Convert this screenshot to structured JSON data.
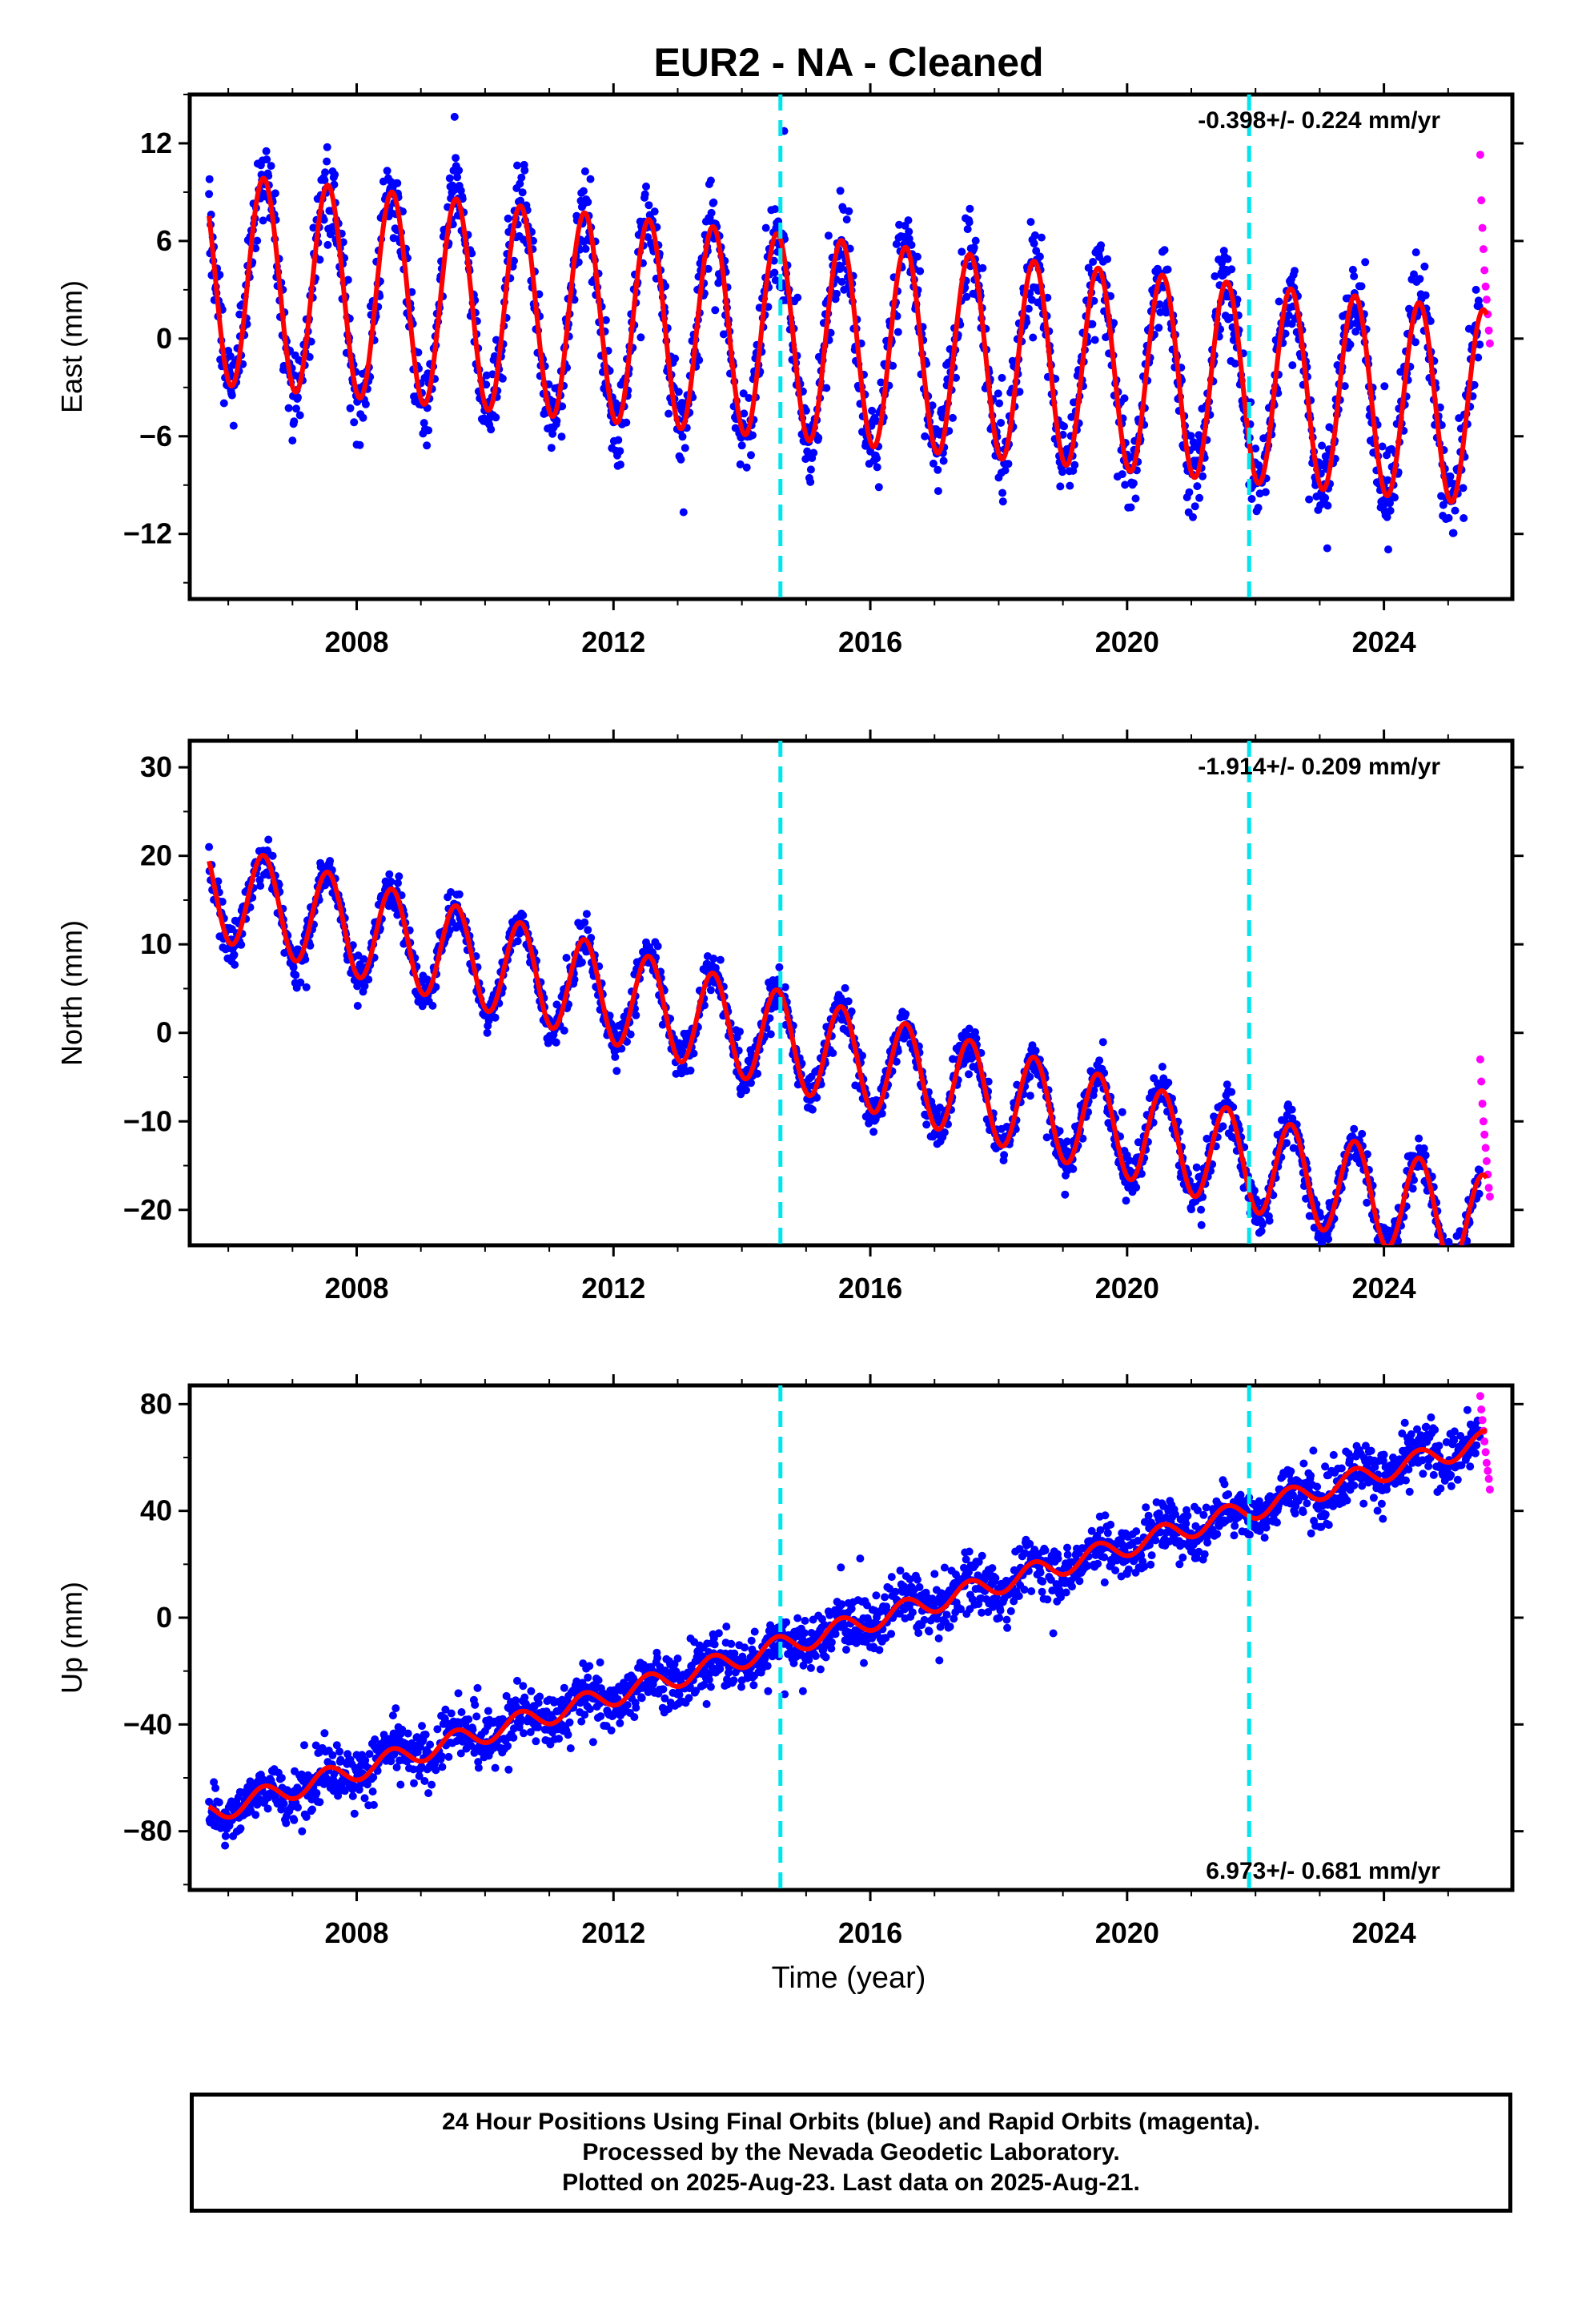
{
  "title": "EUR2  - NA - Cleaned",
  "colors": {
    "final": "#0000ff",
    "rapid": "#ff00ff",
    "model": "#ff0000",
    "break": "#00e5ee"
  },
  "chart_data": [
    {
      "type": "scatter",
      "ylabel": "East (mm)",
      "xlabel": "",
      "xlim": [
        2005.4,
        2026.0
      ],
      "ylim": [
        -16,
        15
      ],
      "xticks": [
        "2008",
        "2012",
        "2016",
        "2020",
        "2024"
      ],
      "yticks": [
        "12",
        "6",
        "0",
        "−6",
        "−12"
      ],
      "ytick_values": [
        12,
        6,
        0,
        -6,
        -12
      ],
      "rate_label": "-0.398+/- 0.224 mm/yr",
      "rate_label_position": "top-right",
      "breaks": [
        2014.6,
        2021.9
      ],
      "series": [
        {
          "kind": "model",
          "values": {
            "t_start": 2005.7,
            "t_end": 2025.6,
            "offset_2005": 4.0,
            "rate": -0.4,
            "annual_amp_start": 6.5,
            "annual_amp_end": 6.0,
            "phase_peak": 0.55
          }
        },
        {
          "kind": "final",
          "t_start": 2005.7,
          "t_end": 2025.5,
          "scatter": 1.8
        },
        {
          "kind": "rapid",
          "t_start": 2025.5,
          "t_end": 2025.65,
          "values": [
            11.3,
            8.5,
            6.8,
            5.5,
            4.2,
            3.2,
            2.4,
            1.5,
            0.5,
            -0.3
          ]
        }
      ]
    },
    {
      "type": "scatter",
      "ylabel": "North (mm)",
      "xlabel": "",
      "xlim": [
        2005.4,
        2026.0
      ],
      "ylim": [
        -24,
        33
      ],
      "xticks": [
        "2008",
        "2012",
        "2016",
        "2020",
        "2024"
      ],
      "yticks": [
        "30",
        "20",
        "10",
        "0",
        "−10",
        "−20"
      ],
      "ytick_values": [
        30,
        20,
        10,
        0,
        -10,
        -20
      ],
      "rate_label": "-1.914+/- 0.209 mm/yr",
      "rate_label_position": "top-right",
      "breaks": [
        2014.6,
        2021.9
      ],
      "series": [
        {
          "kind": "model",
          "values": {
            "t_start": 2005.7,
            "t_end": 2025.6,
            "offset_2005": 17.5,
            "rate": -1.9,
            "annual_amp_start": 5.5,
            "annual_amp_end": 5.5,
            "phase_peak": 0.55
          }
        },
        {
          "kind": "final",
          "t_start": 2005.7,
          "t_end": 2025.5,
          "scatter": 1.6
        },
        {
          "kind": "rapid",
          "t_start": 2025.5,
          "t_end": 2025.65,
          "values": [
            -3.0,
            -5.5,
            -8.0,
            -10.0,
            -11.5,
            -13.0,
            -14.5,
            -16.0,
            -17.5,
            -18.5
          ]
        }
      ]
    },
    {
      "type": "scatter",
      "ylabel": "Up (mm)",
      "xlabel": "Time (year)",
      "xlim": [
        2005.4,
        2026.0
      ],
      "ylim": [
        -102,
        87
      ],
      "xticks": [
        "2008",
        "2012",
        "2016",
        "2020",
        "2024"
      ],
      "yticks": [
        "80",
        "40",
        "0",
        "−40",
        "−80"
      ],
      "ytick_values": [
        80,
        40,
        0,
        -40,
        -80
      ],
      "rate_label": "6.973+/- 0.681 mm/yr",
      "rate_label_position": "bottom-right",
      "breaks": [
        2014.6,
        2021.9
      ],
      "series": [
        {
          "kind": "model",
          "values": {
            "t_start": 2005.7,
            "t_end": 2025.6,
            "offset_2005": -78.0,
            "rate": 7.0,
            "annual_amp_start": 4.0,
            "annual_amp_end": 4.0,
            "phase_peak": 0.55
          }
        },
        {
          "kind": "final",
          "t_start": 2005.7,
          "t_end": 2025.5,
          "scatter": 7.0
        },
        {
          "kind": "rapid",
          "t_start": 2025.5,
          "t_end": 2025.65,
          "values": [
            83,
            78,
            74,
            70,
            66,
            62,
            58,
            55,
            52,
            48
          ]
        }
      ]
    }
  ],
  "caption": {
    "line1": "24 Hour Positions Using Final Orbits (blue) and Rapid Orbits (magenta).",
    "line2": "Processed by the Nevada Geodetic Laboratory.",
    "line3": "Plotted on 2025-Aug-23. Last data on 2025-Aug-21."
  }
}
